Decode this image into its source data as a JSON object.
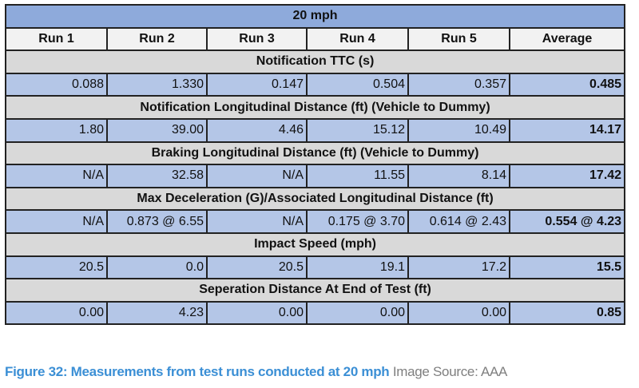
{
  "table": {
    "title": "20 mph",
    "columns": [
      "Run 1",
      "Run 2",
      "Run 3",
      "Run 4",
      "Run 5",
      "Average"
    ],
    "sections": [
      {
        "label": "Notification TTC (s)",
        "values": [
          "0.088",
          "1.330",
          "0.147",
          "0.504",
          "0.357",
          "0.485"
        ]
      },
      {
        "label": "Notification Longitudinal Distance (ft) (Vehicle to Dummy)",
        "values": [
          "1.80",
          "39.00",
          "4.46",
          "15.12",
          "10.49",
          "14.17"
        ]
      },
      {
        "label": "Braking Longitudinal Distance (ft) (Vehicle to Dummy)",
        "values": [
          "N/A",
          "32.58",
          "N/A",
          "11.55",
          "8.14",
          "17.42"
        ]
      },
      {
        "label": "Max Deceleration (G)/Associated Longitudinal Distance (ft)",
        "values": [
          "N/A",
          "0.873 @ 6.55",
          "N/A",
          "0.175 @ 3.70",
          "0.614 @ 2.43",
          "0.554 @ 4.23"
        ]
      },
      {
        "label": "Impact Speed (mph)",
        "values": [
          "20.5",
          "0.0",
          "20.5",
          "19.1",
          "17.2",
          "15.5"
        ]
      },
      {
        "label": "Seperation Distance At End of Test (ft)",
        "values": [
          "0.00",
          "4.23",
          "0.00",
          "0.00",
          "0.00",
          "0.85"
        ]
      }
    ]
  },
  "caption": {
    "main": "Figure 32: Measurements from test runs conducted at 20 mph",
    "source": "Image Source: AAA"
  },
  "colors": {
    "title_bg": "#8eaadb",
    "section_bg": "#d9d9d9",
    "data_bg": "#b4c6e7",
    "caption": "#3b8fd5"
  }
}
